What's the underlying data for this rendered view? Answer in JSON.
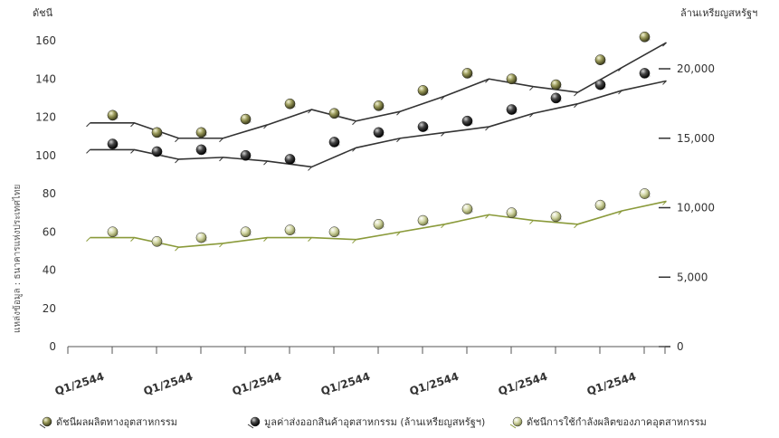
{
  "chart_data": {
    "type": "line",
    "y_left": {
      "label": "ดัชนี",
      "range": [
        0,
        160
      ],
      "ticks": [
        0,
        20,
        40,
        60,
        80,
        100,
        120,
        140,
        160
      ]
    },
    "y_right": {
      "label": "ล้านเหรียญสหรัฐฯ",
      "range": [
        0,
        23000
      ],
      "ticks": [
        {
          "value": 0,
          "label": "0"
        },
        {
          "value": 5000,
          "label": "5,000"
        },
        {
          "value": 10000,
          "label": "10,000"
        },
        {
          "value": 15000,
          "label": "15,000"
        },
        {
          "value": 20000,
          "label": "20,000"
        }
      ]
    },
    "x_ticks": {
      "count": 28,
      "labels": [
        {
          "index": 0,
          "label": "Q1/2544"
        },
        {
          "index": 4,
          "label": "Q1/2544"
        },
        {
          "index": 8,
          "label": "Q1/2544"
        },
        {
          "index": 12,
          "label": "Q1/2544"
        },
        {
          "index": 16,
          "label": "Q1/2544"
        },
        {
          "index": 20,
          "label": "Q1/2544"
        },
        {
          "index": 24,
          "label": "Q1/2544"
        }
      ]
    },
    "source_note": "แหล่งข้อมูล : ธนาคารแห่งประเทศไทย",
    "grid": false,
    "legend_position": "bottom",
    "series": [
      {
        "name": "ดัชนีผลผลิตทางอุตสาหกรรม",
        "axis": "left",
        "color": "#333333",
        "marker_color": "#6b6b3a",
        "x": [
          3,
          5,
          7,
          9,
          11,
          13,
          15,
          17,
          19,
          21,
          23,
          25,
          27
        ],
        "values": [
          117,
          109,
          109,
          116,
          124,
          118,
          123,
          131,
          140,
          136,
          133,
          146,
          159
        ],
        "markers": [
          121,
          112,
          112,
          119,
          127,
          122,
          126,
          134,
          143,
          140,
          137,
          150,
          162
        ]
      },
      {
        "name": "มูลค่าส่งออกสินค้าอุตสาหกรรม (ล้านเหรียญสหรัฐฯ)",
        "axis": "left",
        "color": "#333333",
        "marker_color": "#111111",
        "x": [
          3,
          5,
          7,
          9,
          11,
          13,
          15,
          17,
          19,
          21,
          23,
          25,
          27
        ],
        "values": [
          103,
          98,
          99,
          97,
          94,
          104,
          109,
          112,
          115,
          122,
          127,
          134,
          139
        ],
        "markers": [
          106,
          102,
          103,
          100,
          98,
          107,
          112,
          115,
          118,
          124,
          130,
          137,
          143
        ]
      },
      {
        "name": "ดัชนีการใช้กำลังผลิตของภาคอุตสาหกรรม",
        "axis": "left",
        "color": "#8a9a3a",
        "marker_color": "#b9bf82",
        "x": [
          3,
          5,
          7,
          9,
          11,
          13,
          15,
          17,
          19,
          21,
          23,
          25,
          27
        ],
        "values": [
          57,
          52,
          54,
          57,
          57,
          56,
          60,
          64,
          69,
          66,
          64,
          71,
          76
        ],
        "markers": [
          60,
          55,
          57,
          60,
          61,
          60,
          64,
          66,
          72,
          70,
          68,
          74,
          80
        ]
      }
    ]
  }
}
